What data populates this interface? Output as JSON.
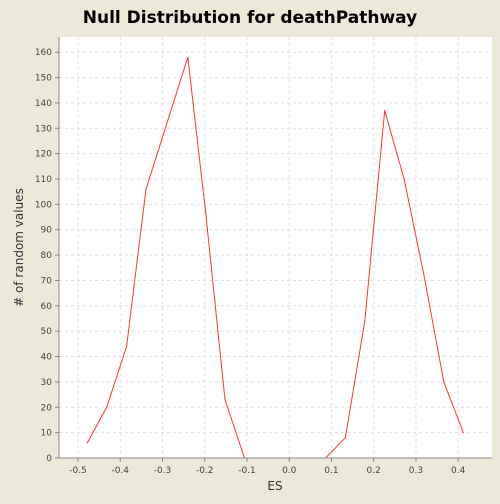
{
  "chart_data": {
    "type": "line",
    "title": "Null Distribution for deathPathway",
    "xlabel": "ES",
    "ylabel": "# of random values",
    "xlim": [
      -0.545,
      0.48
    ],
    "ylim": [
      0,
      166
    ],
    "x_ticks": [
      -0.5,
      -0.4,
      -0.3,
      -0.2,
      -0.1,
      0.0,
      0.1,
      0.2,
      0.3,
      0.4
    ],
    "x_tick_labels": [
      "-0.5",
      "-0.4",
      "-0.3",
      "-0.2",
      "-0.1",
      "0.0",
      "0.1",
      "0.2",
      "0.3",
      "0.4"
    ],
    "y_ticks": [
      0,
      10,
      20,
      30,
      40,
      50,
      60,
      70,
      80,
      90,
      100,
      110,
      120,
      130,
      140,
      150,
      160
    ],
    "grid": true,
    "background": "#FFFFFF",
    "page_background": "#ECE9D8",
    "series": [
      {
        "color": "#FF3333",
        "x": [
          -0.478,
          -0.432,
          -0.385,
          -0.339,
          -0.24,
          -0.198,
          -0.152,
          -0.106,
          0.086,
          0.133,
          0.179,
          0.226,
          0.272,
          0.319,
          0.366,
          0.412
        ],
        "y": [
          6,
          20,
          44,
          106,
          158,
          97,
          23,
          0,
          0,
          8,
          54,
          137,
          110,
          72,
          30,
          10
        ]
      }
    ]
  }
}
